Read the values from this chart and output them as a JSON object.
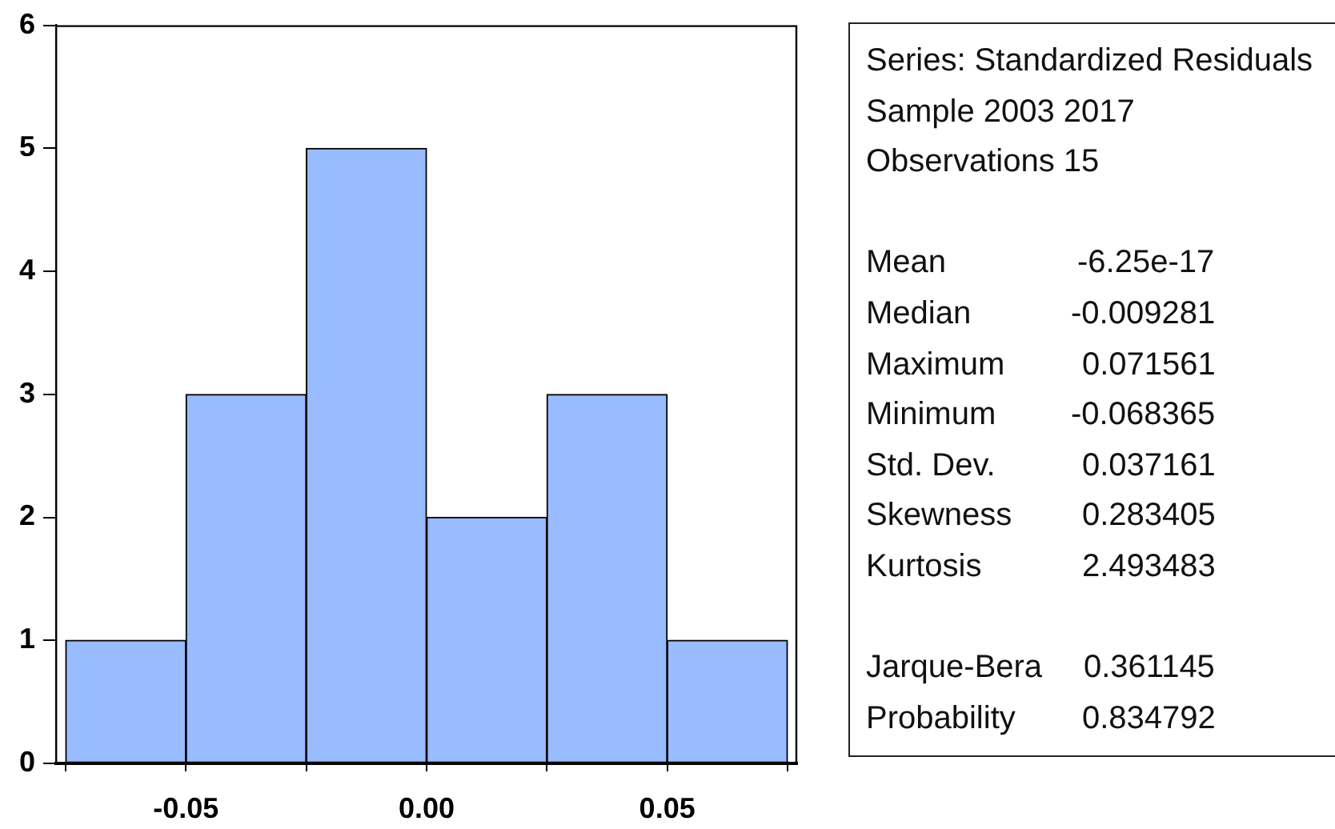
{
  "chart_data": [
    {
      "type": "histogram",
      "bins": [
        -0.075,
        -0.05,
        -0.025,
        0,
        0.025,
        0.05,
        0.075
      ],
      "values": [
        1,
        3,
        5,
        2,
        3,
        1
      ],
      "color": "#99bbff",
      "xlim": [
        -0.077,
        0.077
      ],
      "xticks": [
        {
          "value": -0.075,
          "label": null
        },
        -0.05,
        {
          "value": -0.025,
          "label": null
        },
        {
          "value": 0,
          "label": "0.00"
        },
        {
          "value": 0.025,
          "label": null
        },
        0.05,
        {
          "value": 0.075,
          "label": null
        }
      ],
      "ylim": [
        0,
        6
      ],
      "yticks": [
        0,
        1,
        2,
        3,
        4,
        5,
        6
      ]
    },
    {
      "type": "other",
      "title": "Series: Standardized Residuals",
      "annotations": [
        "Sample 2003 2017",
        "Observations 15"
      ],
      "categories": [
        "Mean",
        "Median",
        "Maximum",
        "Minimum",
        "Std. Dev.",
        "Skewness",
        "Kurtosis",
        null,
        "Jarque-Bera",
        "Probability"
      ],
      "values": [
        -6.25e-17,
        -0.009281,
        0.071561,
        -0.068365,
        0.037161,
        0.283405,
        2.493483,
        null,
        0.361145,
        0.834792
      ],
      "data_labels": true
    }
  ]
}
